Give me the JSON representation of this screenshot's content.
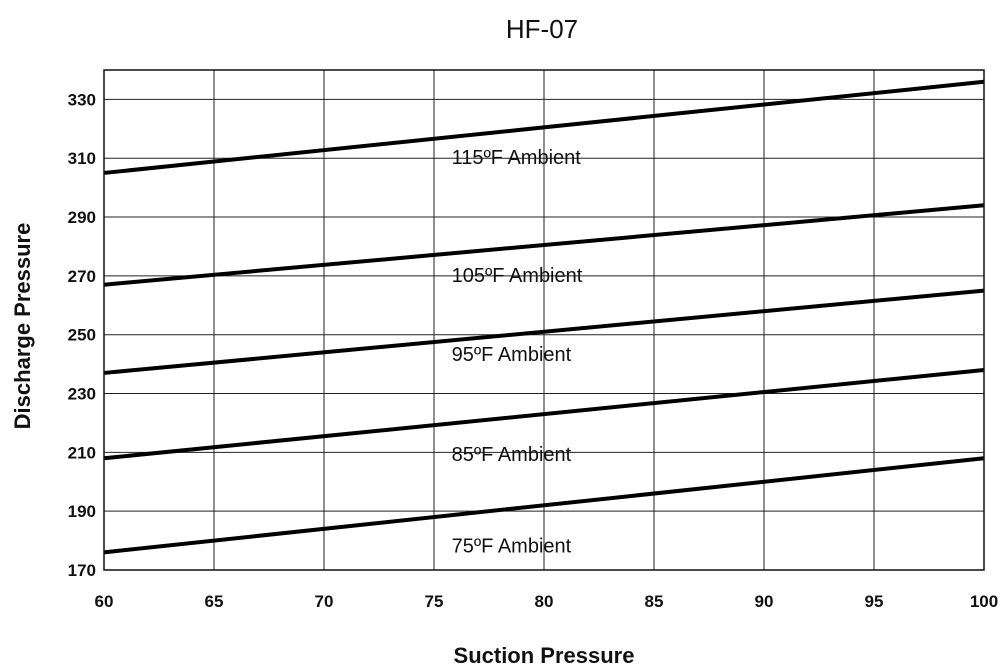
{
  "chart_data": {
    "type": "line",
    "title": "HF-07",
    "xlabel": "Suction Pressure",
    "ylabel": "Discharge Pressure",
    "xlim": [
      60,
      100
    ],
    "ylim": [
      170,
      340
    ],
    "xticks": [
      60,
      65,
      70,
      75,
      80,
      85,
      90,
      95,
      100
    ],
    "yticks": [
      170,
      190,
      210,
      230,
      250,
      270,
      290,
      310,
      330
    ],
    "grid": true,
    "legend": "none",
    "series": [
      {
        "name": "115ºF Ambient",
        "x": [
          60,
          100
        ],
        "y": [
          305,
          336
        ],
        "label_x": 75.8,
        "label_y": 308
      },
      {
        "name": "105ºF Ambient",
        "x": [
          60,
          100
        ],
        "y": [
          267,
          294
        ],
        "label_x": 75.8,
        "label_y": 268
      },
      {
        "name": "95ºF Ambient",
        "x": [
          60,
          100
        ],
        "y": [
          237,
          265
        ],
        "label_x": 75.8,
        "label_y": 241
      },
      {
        "name": "85ºF Ambient",
        "x": [
          60,
          100
        ],
        "y": [
          208,
          238
        ],
        "label_x": 75.8,
        "label_y": 207
      },
      {
        "name": "75ºF Ambient",
        "x": [
          60,
          100
        ],
        "y": [
          176,
          208
        ],
        "label_x": 75.8,
        "label_y": 176
      }
    ],
    "line_color": "#000000"
  }
}
